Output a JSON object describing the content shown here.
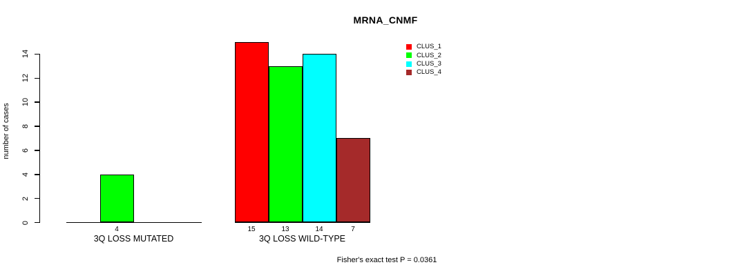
{
  "chart_data": {
    "type": "bar",
    "title": "MRNA_CNMF",
    "xlabel": "",
    "ylabel": "number of cases",
    "ylim": [
      0,
      15
    ],
    "y_ticks": [
      0,
      2,
      4,
      6,
      8,
      10,
      12,
      14
    ],
    "grid": false,
    "legend_position": "top-right",
    "background_color": "#ffffff",
    "axis_color": "#000000",
    "series": [
      {
        "name": "CLUS_1",
        "color": "#ff0000"
      },
      {
        "name": "CLUS_2",
        "color": "#00ff00"
      },
      {
        "name": "CLUS_3",
        "color": "#00ffff"
      },
      {
        "name": "CLUS_4",
        "color": "#a52a2a"
      }
    ],
    "groups": [
      {
        "label": "3Q LOSS MUTATED",
        "values": [
          0,
          4,
          0,
          0
        ],
        "bar_labels": [
          "",
          "4",
          "",
          ""
        ]
      },
      {
        "label": "3Q LOSS WILD-TYPE",
        "values": [
          15,
          13,
          14,
          7
        ],
        "bar_labels": [
          "15",
          "13",
          "14",
          "7"
        ]
      }
    ],
    "annotation": "Fisher's exact test P = 0.0361"
  }
}
